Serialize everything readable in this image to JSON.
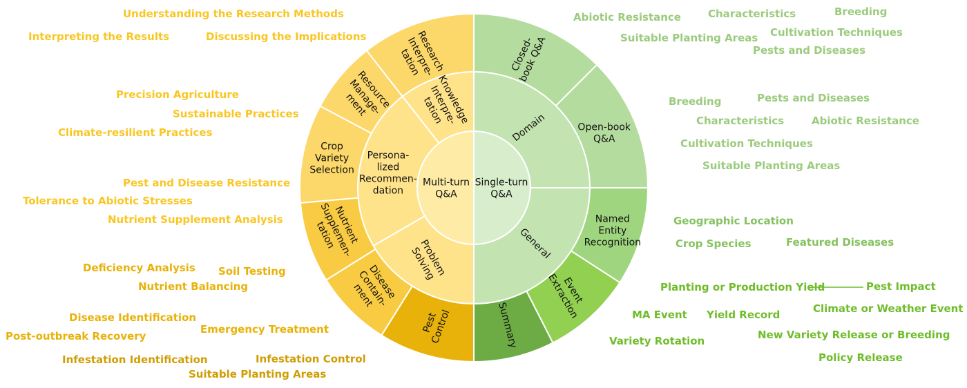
{
  "center": {
    "left": [
      "Multi-turn",
      "Q&A"
    ],
    "right": [
      "Single-turn",
      "Q&A"
    ]
  },
  "inner_ring": [
    {
      "id": "knowledge",
      "lines": [
        "Knowledge",
        "Interpre-",
        "tation"
      ]
    },
    {
      "id": "personalized",
      "lines": [
        "Persona-",
        "lized",
        "Recommen-",
        "dation"
      ]
    },
    {
      "id": "problem-solving",
      "lines": [
        "Problem",
        "Solving"
      ]
    },
    {
      "id": "domain",
      "lines": [
        "Domain"
      ]
    },
    {
      "id": "general",
      "lines": [
        "General"
      ]
    }
  ],
  "outer_ring": [
    {
      "id": "research",
      "lines": [
        "Research",
        "Interpre-",
        "tation"
      ]
    },
    {
      "id": "resource",
      "lines": [
        "Resource",
        "Manage-",
        "ment"
      ]
    },
    {
      "id": "crop-variety",
      "lines": [
        "Crop",
        "Variety",
        "Selection"
      ]
    },
    {
      "id": "nutrient",
      "lines": [
        "Nutrient",
        "Supplemen-",
        "tation"
      ]
    },
    {
      "id": "disease",
      "lines": [
        "Disease",
        "Contain-",
        "ment"
      ]
    },
    {
      "id": "pest",
      "lines": [
        "Pest",
        "Control"
      ]
    },
    {
      "id": "closed-book",
      "lines": [
        "Closed-",
        "book Q&A"
      ]
    },
    {
      "id": "open-book",
      "lines": [
        "Open-book",
        "Q&A"
      ]
    },
    {
      "id": "ner",
      "lines": [
        "Named",
        "Entity",
        "Recognition"
      ]
    },
    {
      "id": "event",
      "lines": [
        "Event",
        "Extraction"
      ]
    },
    {
      "id": "summary",
      "lines": [
        "Summary"
      ]
    }
  ],
  "colors": {
    "yellow_center": "#FDEBA6",
    "yellow_inner": "#FFE38A",
    "yellow_outer_light": "#FCD769",
    "yellow_outer_mid": "#F9CB42",
    "yellow_outer_dark": "#E8B20A",
    "green_center": "#D8EDCC",
    "green_inner": "#C3E3B1",
    "green_outer_light": "#B5DC9F",
    "green_outer_mid": "#9ED57E",
    "green_bright": "#91D051",
    "green_dark": "#6DAB45",
    "text_yellow_light": "#F9C623",
    "text_yellow_mid": "#E8B20A",
    "text_yellow_dark": "#CF9E04",
    "text_green_light": "#9BCB7D",
    "text_green_mid": "#86C260",
    "text_green_bright": "#6FBD2A"
  },
  "labels_left": [
    {
      "id": "understanding-methods",
      "text": "Understanding the Research Methods",
      "tone": "light"
    },
    {
      "id": "interpreting-results",
      "text": "Interpreting the Results",
      "tone": "light"
    },
    {
      "id": "discussing-implications",
      "text": "Discussing the Implications",
      "tone": "light"
    },
    {
      "id": "precision-agriculture",
      "text": "Precision Agriculture",
      "tone": "light"
    },
    {
      "id": "sustainable-practices",
      "text": "Sustainable Practices",
      "tone": "light"
    },
    {
      "id": "climate-resilient",
      "text": "Climate-resilient Practices",
      "tone": "light"
    },
    {
      "id": "pest-disease-resistance",
      "text": "Pest and Disease Resistance",
      "tone": "light"
    },
    {
      "id": "tolerance-abiotic",
      "text": "Tolerance to Abiotic Stresses",
      "tone": "light"
    },
    {
      "id": "nutrient-supplement-analysis",
      "text": "Nutrient Supplement Analysis",
      "tone": "light"
    },
    {
      "id": "deficiency-analysis",
      "text": "Deficiency Analysis",
      "tone": "mid"
    },
    {
      "id": "soil-testing",
      "text": "Soil Testing",
      "tone": "mid"
    },
    {
      "id": "nutrient-balancing",
      "text": "Nutrient Balancing",
      "tone": "mid"
    },
    {
      "id": "disease-identification",
      "text": "Disease Identification",
      "tone": "mid"
    },
    {
      "id": "emergency-treatment",
      "text": "Emergency Treatment",
      "tone": "mid"
    },
    {
      "id": "post-outbreak-recovery",
      "text": "Post-outbreak Recovery",
      "tone": "mid"
    },
    {
      "id": "infestation-identification",
      "text": "Infestation Identification",
      "tone": "dark"
    },
    {
      "id": "infestation-control",
      "text": "Infestation Control",
      "tone": "dark"
    },
    {
      "id": "suitable-planting-areas-left",
      "text": "Suitable Planting Areas",
      "tone": "dark"
    }
  ],
  "labels_right": [
    {
      "id": "abiotic-resistance-top",
      "text": "Abiotic Resistance",
      "tone": "light"
    },
    {
      "id": "characteristics-top",
      "text": "Characteristics",
      "tone": "light"
    },
    {
      "id": "breeding-top",
      "text": "Breeding",
      "tone": "light"
    },
    {
      "id": "cultivation-techniques-top",
      "text": "Cultivation Techniques",
      "tone": "light"
    },
    {
      "id": "suitable-planting-areas-top",
      "text": "Suitable Planting Areas",
      "tone": "light"
    },
    {
      "id": "pests-diseases-top",
      "text": "Pests and Diseases",
      "tone": "light"
    },
    {
      "id": "breeding-mid",
      "text": "Breeding",
      "tone": "light"
    },
    {
      "id": "pests-diseases-mid",
      "text": "Pests and Diseases",
      "tone": "light"
    },
    {
      "id": "characteristics-mid",
      "text": "Characteristics",
      "tone": "light"
    },
    {
      "id": "abiotic-resistance-mid",
      "text": "Abiotic Resistance",
      "tone": "light"
    },
    {
      "id": "cultivation-techniques-mid",
      "text": "Cultivation Techniques",
      "tone": "light"
    },
    {
      "id": "suitable-planting-areas-mid",
      "text": "Suitable Planting Areas",
      "tone": "light"
    },
    {
      "id": "geographic-location",
      "text": "Geographic Location",
      "tone": "mid"
    },
    {
      "id": "crop-species",
      "text": "Crop Species",
      "tone": "mid"
    },
    {
      "id": "featured-diseases",
      "text": "Featured Diseases",
      "tone": "mid"
    },
    {
      "id": "planting-production-yield",
      "text": "Planting or Production Yield",
      "tone": "bright"
    },
    {
      "id": "pest-impact",
      "text": "Pest Impact",
      "tone": "bright"
    },
    {
      "id": "climate-weather-event",
      "text": "Climate or Weather Event",
      "tone": "bright"
    },
    {
      "id": "ma-event",
      "text": "MA Event",
      "tone": "bright"
    },
    {
      "id": "yield-record",
      "text": "Yield Record",
      "tone": "bright"
    },
    {
      "id": "new-variety-release",
      "text": "New Variety Release or Breeding",
      "tone": "bright"
    },
    {
      "id": "variety-rotation",
      "text": "Variety Rotation",
      "tone": "bright"
    },
    {
      "id": "policy-release",
      "text": "Policy Release",
      "tone": "bright"
    }
  ]
}
